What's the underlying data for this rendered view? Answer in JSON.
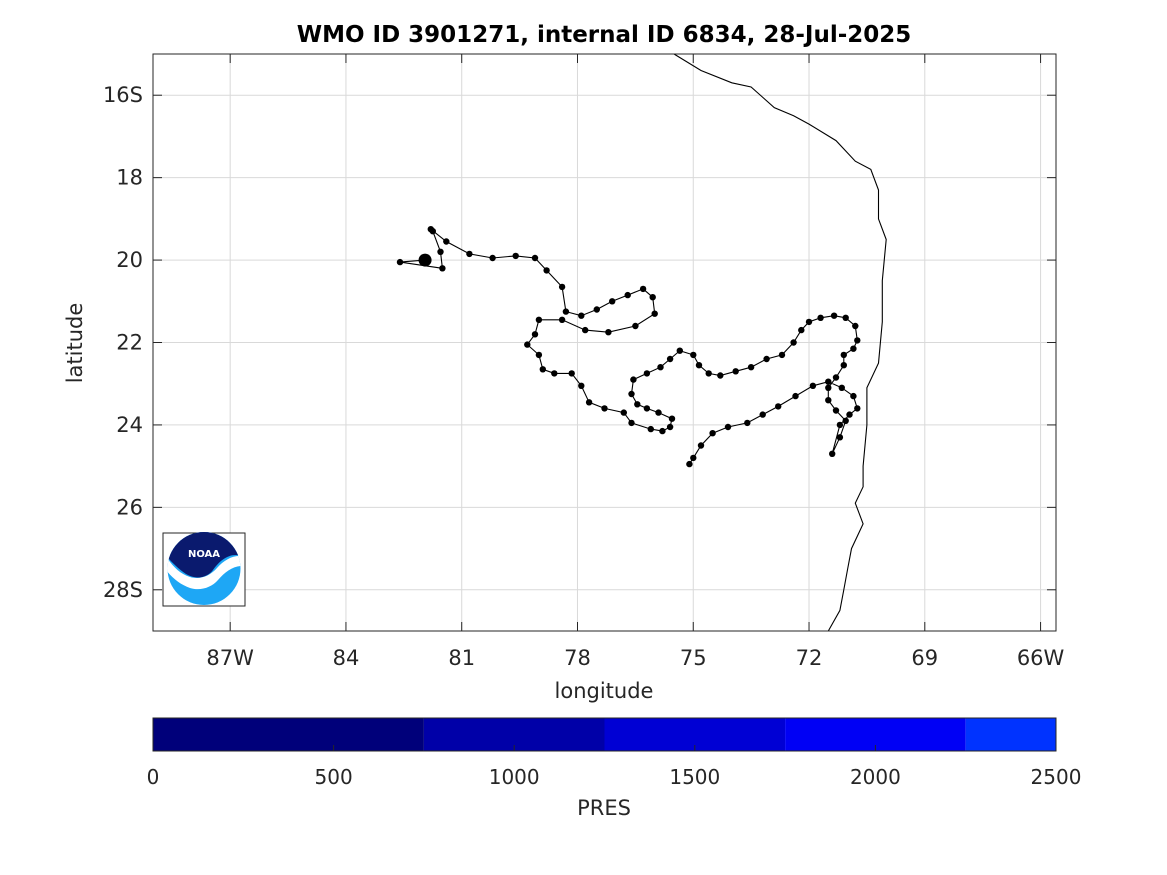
{
  "chart_data": {
    "type": "scatter",
    "title": "WMO ID 3901271, internal ID 6834, 28-Jul-2025",
    "xlabel": "longitude",
    "ylabel": "latitude",
    "x_ticks": [
      {
        "value": -87,
        "label": "87W"
      },
      {
        "value": -84,
        "label": "84"
      },
      {
        "value": -81,
        "label": "81"
      },
      {
        "value": -78,
        "label": "78"
      },
      {
        "value": -75,
        "label": "75"
      },
      {
        "value": -72,
        "label": "72"
      },
      {
        "value": -69,
        "label": "69"
      },
      {
        "value": -66,
        "label": "66W"
      }
    ],
    "y_ticks": [
      {
        "value": -16,
        "label": "16S"
      },
      {
        "value": -18,
        "label": "18"
      },
      {
        "value": -20,
        "label": "20"
      },
      {
        "value": -22,
        "label": "22"
      },
      {
        "value": -24,
        "label": "24"
      },
      {
        "value": -26,
        "label": "26"
      },
      {
        "value": -28,
        "label": "28S"
      }
    ],
    "xlim": [
      -89.0,
      -65.6
    ],
    "ylim": [
      -29.0,
      -15.0
    ],
    "grid": true,
    "start_point": {
      "lon": -81.95,
      "lat": -20.0
    },
    "coastline": [
      [
        -75.5,
        -15.0
      ],
      [
        -74.8,
        -15.4
      ],
      [
        -74.0,
        -15.7
      ],
      [
        -73.5,
        -15.8
      ],
      [
        -72.9,
        -16.3
      ],
      [
        -72.4,
        -16.5
      ],
      [
        -72.0,
        -16.7
      ],
      [
        -71.3,
        -17.1
      ],
      [
        -70.8,
        -17.6
      ],
      [
        -70.4,
        -17.8
      ],
      [
        -70.2,
        -18.3
      ],
      [
        -70.2,
        -19.0
      ],
      [
        -70.0,
        -19.5
      ],
      [
        -70.1,
        -20.5
      ],
      [
        -70.1,
        -21.5
      ],
      [
        -70.2,
        -22.5
      ],
      [
        -70.5,
        -23.1
      ],
      [
        -70.5,
        -24.0
      ],
      [
        -70.6,
        -25.0
      ],
      [
        -70.6,
        -25.5
      ],
      [
        -70.8,
        -25.9
      ],
      [
        -70.6,
        -26.4
      ],
      [
        -70.9,
        -27.0
      ],
      [
        -71.0,
        -27.5
      ],
      [
        -71.1,
        -28.0
      ],
      [
        -71.2,
        -28.5
      ],
      [
        -71.5,
        -29.0
      ]
    ],
    "trajectory": [
      [
        -81.95,
        -20.0
      ],
      [
        -82.6,
        -20.05
      ],
      [
        -81.5,
        -20.2
      ],
      [
        -81.55,
        -19.8
      ],
      [
        -81.75,
        -19.3
      ],
      [
        -81.8,
        -19.25
      ],
      [
        -81.4,
        -19.55
      ],
      [
        -80.8,
        -19.85
      ],
      [
        -80.2,
        -19.95
      ],
      [
        -79.6,
        -19.9
      ],
      [
        -79.1,
        -19.95
      ],
      [
        -78.8,
        -20.25
      ],
      [
        -78.4,
        -20.65
      ],
      [
        -78.3,
        -21.25
      ],
      [
        -77.9,
        -21.35
      ],
      [
        -77.5,
        -21.2
      ],
      [
        -77.1,
        -21.0
      ],
      [
        -76.7,
        -20.85
      ],
      [
        -76.3,
        -20.7
      ],
      [
        -76.05,
        -20.9
      ],
      [
        -76.0,
        -21.3
      ],
      [
        -76.5,
        -21.6
      ],
      [
        -77.2,
        -21.75
      ],
      [
        -77.8,
        -21.7
      ],
      [
        -78.4,
        -21.45
      ],
      [
        -79.0,
        -21.45
      ],
      [
        -79.1,
        -21.8
      ],
      [
        -79.3,
        -22.05
      ],
      [
        -79.0,
        -22.3
      ],
      [
        -78.9,
        -22.65
      ],
      [
        -78.6,
        -22.75
      ],
      [
        -78.15,
        -22.75
      ],
      [
        -77.9,
        -23.05
      ],
      [
        -77.7,
        -23.45
      ],
      [
        -77.3,
        -23.6
      ],
      [
        -76.8,
        -23.7
      ],
      [
        -76.6,
        -23.95
      ],
      [
        -76.1,
        -24.1
      ],
      [
        -75.8,
        -24.15
      ],
      [
        -75.6,
        -24.05
      ],
      [
        -75.55,
        -23.85
      ],
      [
        -75.9,
        -23.7
      ],
      [
        -76.2,
        -23.6
      ],
      [
        -76.45,
        -23.5
      ],
      [
        -76.6,
        -23.25
      ],
      [
        -76.55,
        -22.9
      ],
      [
        -76.2,
        -22.75
      ],
      [
        -75.85,
        -22.6
      ],
      [
        -75.6,
        -22.4
      ],
      [
        -75.35,
        -22.2
      ],
      [
        -75.0,
        -22.3
      ],
      [
        -74.85,
        -22.55
      ],
      [
        -74.6,
        -22.75
      ],
      [
        -74.3,
        -22.8
      ],
      [
        -73.9,
        -22.7
      ],
      [
        -73.5,
        -22.6
      ],
      [
        -73.1,
        -22.4
      ],
      [
        -72.7,
        -22.3
      ],
      [
        -72.4,
        -22.0
      ],
      [
        -72.2,
        -21.7
      ],
      [
        -72.0,
        -21.5
      ],
      [
        -71.7,
        -21.4
      ],
      [
        -71.35,
        -21.35
      ],
      [
        -71.05,
        -21.4
      ],
      [
        -70.8,
        -21.6
      ],
      [
        -70.75,
        -21.95
      ],
      [
        -70.85,
        -22.15
      ],
      [
        -71.1,
        -22.3
      ],
      [
        -71.1,
        -22.55
      ],
      [
        -71.3,
        -22.85
      ],
      [
        -71.5,
        -23.1
      ],
      [
        -71.5,
        -23.4
      ],
      [
        -71.3,
        -23.65
      ],
      [
        -71.05,
        -23.9
      ],
      [
        -71.2,
        -24.3
      ],
      [
        -71.4,
        -24.7
      ],
      [
        -71.2,
        -24.0
      ],
      [
        -70.95,
        -23.75
      ],
      [
        -70.75,
        -23.6
      ],
      [
        -70.85,
        -23.3
      ],
      [
        -71.15,
        -23.1
      ],
      [
        -71.5,
        -22.95
      ],
      [
        -71.9,
        -23.05
      ],
      [
        -72.35,
        -23.3
      ],
      [
        -72.8,
        -23.55
      ],
      [
        -73.2,
        -23.75
      ],
      [
        -73.6,
        -23.95
      ],
      [
        -74.1,
        -24.05
      ],
      [
        -74.5,
        -24.2
      ],
      [
        -74.8,
        -24.5
      ],
      [
        -75.0,
        -24.8
      ],
      [
        -75.1,
        -24.95
      ]
    ],
    "colorbar": {
      "label": "PRES",
      "ticks": [
        0,
        500,
        1000,
        1500,
        2000,
        2500
      ],
      "range": [
        0,
        2500
      ],
      "bands": [
        {
          "from": 0,
          "to": 750,
          "color": "#00007a"
        },
        {
          "from": 750,
          "to": 1250,
          "color": "#0000a8"
        },
        {
          "from": 1250,
          "to": 1750,
          "color": "#0000d4"
        },
        {
          "from": 1750,
          "to": 2250,
          "color": "#0000f5"
        },
        {
          "from": 2250,
          "to": 2500,
          "color": "#0033ff"
        }
      ]
    }
  },
  "logo": {
    "text": "NOAA"
  },
  "colors": {
    "track": "#000000",
    "coast": "#000000",
    "logo_navy": "#0a1a6e",
    "logo_sky": "#1ea7f5"
  }
}
